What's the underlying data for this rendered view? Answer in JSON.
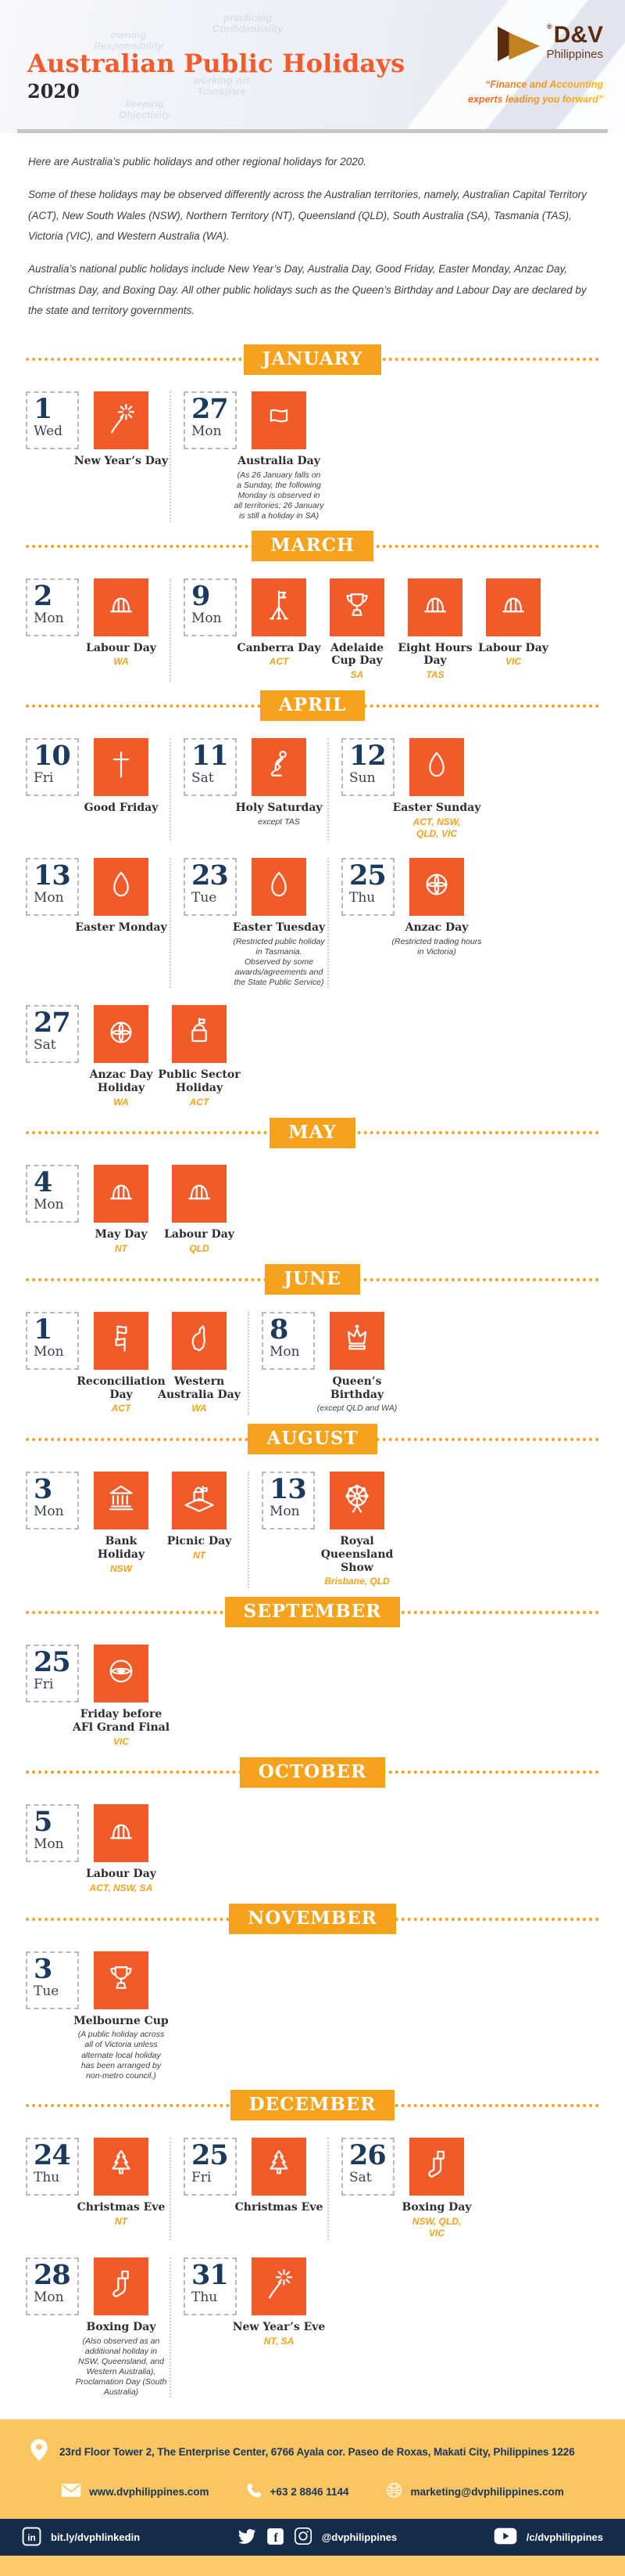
{
  "colors": {
    "orange": "#F15A29",
    "banner_yellow": "#F5A21D",
    "footer_yellow": "#FBC661",
    "footer_navy": "#152D4A",
    "navy": "#1B3A5E"
  },
  "header": {
    "title": "Australian Public Holidays",
    "year": "2020",
    "logo": {
      "registered": "®",
      "name": "D&V",
      "sub": "Philippines",
      "tagline": "“Finance and Accounting\nexperts leading you forward”"
    },
    "background_words": [
      "owning\nResponsibility",
      "practicing\nConfidentiality",
      "working wit\nTranspare",
      "keeping\nObjectivity"
    ]
  },
  "intro": {
    "p1": "Here are Australia’s public holidays and other regional holidays for 2020.",
    "p2": "Some of these holidays may be observed differently across the Australian territories, namely, Australian Capital Territory (ACT), New South Wales (NSW), Northern Territory (NT), Queensland (QLD), South Australia (SA), Tasmania (TAS), Victoria (VIC), and Western Australia (WA).",
    "p3": "Australia’s national public holidays include New Year’s Day, Australia Day, Good Friday, Easter Monday, Anzac Day, Christmas Day, and Boxing Day. All other public holidays such as the Queen’s Birthday and Labour Day are declared by the state and territory governments."
  },
  "months": [
    {
      "label": "JANUARY",
      "rows": [
        [
          {
            "date": {
              "num": "1",
              "day": "Wed"
            },
            "items": [
              {
                "icon": "fireworks-icon",
                "name": "New Year’s Day"
              }
            ]
          },
          {
            "date": {
              "num": "27",
              "day": "Mon"
            },
            "items": [
              {
                "icon": "flag-icon",
                "name": "Australia Day",
                "note": "(As 26 January falls on\na Sunday, the following\nMonday is observed in\nall territories; 26 January\nis still a holiday in SA)"
              }
            ]
          }
        ]
      ]
    },
    {
      "label": "MARCH",
      "rows": [
        [
          {
            "date": {
              "num": "2",
              "day": "Mon"
            },
            "items": [
              {
                "icon": "hardhat-icon",
                "name": "Labour Day",
                "region": "WA"
              }
            ]
          },
          {
            "date": {
              "num": "9",
              "day": "Mon"
            },
            "items": [
              {
                "icon": "flag-mast-icon",
                "name": "Canberra Day",
                "region": "ACT"
              },
              {
                "icon": "trophy-icon",
                "name": "Adelaide\nCup Day",
                "region": "SA"
              },
              {
                "icon": "hardhat-icon",
                "name": "Eight Hours\nDay",
                "region": "TAS"
              },
              {
                "icon": "hardhat-icon",
                "name": "Labour Day",
                "region": "VIC"
              }
            ]
          }
        ]
      ]
    },
    {
      "label": "APRIL",
      "rows": [
        [
          {
            "date": {
              "num": "10",
              "day": "Fri"
            },
            "items": [
              {
                "icon": "cross-icon",
                "name": "Good Friday"
              }
            ]
          },
          {
            "date": {
              "num": "11",
              "day": "Sat"
            },
            "items": [
              {
                "icon": "praying-icon",
                "name": "Holy Saturday",
                "note": "except TAS"
              }
            ]
          },
          {
            "date": {
              "num": "12",
              "day": "Sun"
            },
            "items": [
              {
                "icon": "egg-icon",
                "name": "Easter Sunday",
                "region": "ACT, NSW,\nQLD, VIC"
              }
            ]
          }
        ],
        [
          {
            "date": {
              "num": "13",
              "day": "Mon"
            },
            "items": [
              {
                "icon": "egg-icon",
                "name": "Easter Monday"
              }
            ]
          },
          {
            "date": {
              "num": "23",
              "day": "Tue"
            },
            "items": [
              {
                "icon": "egg-icon",
                "name": "Easter Tuesday",
                "note": "(Restricted public holiday\nin Tasmania.\nObserved by some\nawards/agreements and\nthe State Public Service)"
              }
            ]
          },
          {
            "date": {
              "num": "25",
              "day": "Thu"
            },
            "items": [
              {
                "icon": "poppy-icon",
                "name": "Anzac Day",
                "note": "(Restricted trading hours\nin Victoria)"
              }
            ]
          }
        ],
        [
          {
            "date": {
              "num": "27",
              "day": "Sat"
            },
            "items": [
              {
                "icon": "poppy-icon",
                "name": "Anzac Day\nHoliday",
                "region": "WA"
              },
              {
                "icon": "lock-flag-icon",
                "name": "Public Sector\nHoliday",
                "region": "ACT"
              }
            ]
          }
        ]
      ]
    },
    {
      "label": "MAY",
      "rows": [
        [
          {
            "date": {
              "num": "4",
              "day": "Mon"
            },
            "items": [
              {
                "icon": "hardhat-icon",
                "name": "May Day",
                "region": "NT"
              },
              {
                "icon": "hardhat-icon",
                "name": "Labour Day",
                "region": "QLD"
              }
            ]
          }
        ]
      ]
    },
    {
      "label": "JUNE",
      "rows": [
        [
          {
            "date": {
              "num": "1",
              "day": "Mon"
            },
            "items": [
              {
                "icon": "flags-icon",
                "name": "Reconciliation\nDay",
                "region": "ACT"
              },
              {
                "icon": "map-icon",
                "name": "Western\nAustralia Day",
                "region": "WA"
              }
            ]
          },
          {
            "date": {
              "num": "8",
              "day": "Mon"
            },
            "items": [
              {
                "icon": "crown-icon",
                "name": "Queen’s\nBirthday",
                "note": "(except QLD and WA)"
              }
            ]
          }
        ]
      ]
    },
    {
      "label": "AUGUST",
      "rows": [
        [
          {
            "date": {
              "num": "3",
              "day": "Mon"
            },
            "items": [
              {
                "icon": "bank-icon",
                "name": "Bank\nHoliday",
                "region": "NSW"
              },
              {
                "icon": "picnic-icon",
                "name": "Picnic Day",
                "region": "NT"
              }
            ]
          },
          {
            "date": {
              "num": "13",
              "day": "Mon"
            },
            "items": [
              {
                "icon": "ferris-wheel-icon",
                "name": "Royal\nQueensland\nShow",
                "region": "Brisbane, QLD"
              }
            ]
          }
        ]
      ]
    },
    {
      "label": "SEPTEMBER",
      "rows": [
        [
          {
            "date": {
              "num": "25",
              "day": "Fri"
            },
            "items": [
              {
                "icon": "football-icon",
                "name": "Friday before\nAFl Grand Final",
                "region": "VIC"
              }
            ]
          }
        ]
      ]
    },
    {
      "label": "OCTOBER",
      "rows": [
        [
          {
            "date": {
              "num": "5",
              "day": "Mon"
            },
            "items": [
              {
                "icon": "hardhat-icon",
                "name": "Labour Day",
                "region": "ACT, NSW, SA"
              }
            ]
          }
        ]
      ]
    },
    {
      "label": "NOVEMBER",
      "rows": [
        [
          {
            "date": {
              "num": "3",
              "day": "Tue"
            },
            "items": [
              {
                "icon": "trophy-icon",
                "name": "Melbourne Cup",
                "note": "(A public holiday across\nall of Victoria unless\nalternate local holiday\nhas been arranged by\nnon-metro council.)"
              }
            ]
          }
        ]
      ]
    },
    {
      "label": "DECEMBER",
      "rows": [
        [
          {
            "date": {
              "num": "24",
              "day": "Thu"
            },
            "items": [
              {
                "icon": "tree-icon",
                "name": "Christmas Eve",
                "region": "NT"
              }
            ]
          },
          {
            "date": {
              "num": "25",
              "day": "Fri"
            },
            "items": [
              {
                "icon": "tree-icon",
                "name": "Christmas Eve"
              }
            ]
          },
          {
            "date": {
              "num": "26",
              "day": "Sat"
            },
            "items": [
              {
                "icon": "stocking-icon",
                "name": "Boxing Day",
                "region": "NSW, QLD,\nVIC"
              }
            ]
          }
        ],
        [
          {
            "date": {
              "num": "28",
              "day": "Mon"
            },
            "items": [
              {
                "icon": "stocking-icon",
                "name": "Boxing Day",
                "note": "(Also observed as an\nadditional holiday in\nNSW, Queensland, and\nWestern Australia),\nProclamation Day (South\nAustralia)"
              }
            ]
          },
          {
            "date": {
              "num": "31",
              "day": "Thu"
            },
            "items": [
              {
                "icon": "fireworks-icon",
                "name": "New Year’s Eve",
                "region": "NT, SA"
              }
            ]
          }
        ]
      ]
    }
  ],
  "footer": {
    "address": "23rd Floor Tower 2, The Enterprise Center, 6766 Ayala cor. Paseo de Roxas, Makati City, Philippines 1226",
    "website": "www.dvphilippines.com",
    "phone": "+63 2 8846 1144",
    "email": "marketing@dvphilippines.com",
    "linkedin": "bit.ly/dvphlinkedin",
    "social_handle": "@dvphilippines",
    "youtube": "/c/dvphilippines"
  }
}
